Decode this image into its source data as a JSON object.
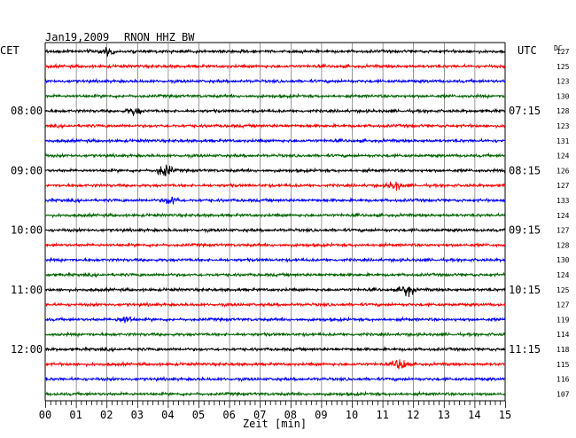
{
  "header": {
    "date": "Jan19,2009",
    "station": "RNON HHZ BW",
    "left_tz": "CET",
    "right_tz": "UTC",
    "dc_label": "DC"
  },
  "colors": {
    "trace_cycle": [
      "#000000",
      "#ff0000",
      "#0000ff",
      "#006400"
    ],
    "grid": "#000000"
  },
  "chart_data": {
    "type": "line",
    "title": "Jan19,2009   RNON HHZ BW",
    "xlabel": "Zeit [min]",
    "ylabel": "",
    "x_ticks": [
      "00",
      "01",
      "02",
      "03",
      "04",
      "05",
      "06",
      "07",
      "08",
      "09",
      "10",
      "11",
      "12",
      "13",
      "14",
      "15"
    ],
    "xlim": [
      0,
      15
    ],
    "grid": "vertical",
    "left_hour_labels": [
      {
        "row": 4,
        "label": "08:00"
      },
      {
        "row": 8,
        "label": "09:00"
      },
      {
        "row": 12,
        "label": "10:00"
      },
      {
        "row": 16,
        "label": "11:00"
      },
      {
        "row": 20,
        "label": "12:00"
      }
    ],
    "right_hour_labels": [
      {
        "row": 4,
        "label": "07:15"
      },
      {
        "row": 8,
        "label": "08:15"
      },
      {
        "row": 12,
        "label": "09:15"
      },
      {
        "row": 16,
        "label": "10:15"
      },
      {
        "row": 20,
        "label": "11:15"
      }
    ],
    "dc_values": [
      127,
      125,
      123,
      130,
      128,
      123,
      131,
      124,
      126,
      127,
      133,
      124,
      127,
      128,
      130,
      124,
      125,
      127,
      119,
      114,
      118,
      115,
      116,
      107
    ],
    "events": [
      {
        "row": 0,
        "minute": 2.0,
        "amplitude": 1.5
      },
      {
        "row": 4,
        "minute": 2.9,
        "amplitude": 1.6
      },
      {
        "row": 8,
        "minute": 3.9,
        "amplitude": 2.6
      },
      {
        "row": 9,
        "minute": 11.4,
        "amplitude": 1.8
      },
      {
        "row": 10,
        "minute": 4.1,
        "amplitude": 1.8
      },
      {
        "row": 16,
        "minute": 11.8,
        "amplitude": 2.5
      },
      {
        "row": 18,
        "minute": 2.6,
        "amplitude": 1.6
      },
      {
        "row": 21,
        "minute": 11.6,
        "amplitude": 2.6
      }
    ]
  }
}
